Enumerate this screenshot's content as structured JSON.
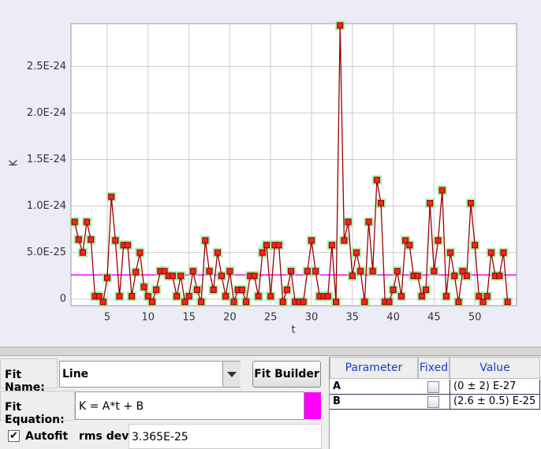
{
  "chart_data": {
    "type": "line",
    "x_label": "t",
    "y_label": "K",
    "xlim": [
      0.56,
      55.1
    ],
    "ylim": [
      -7e-26,
      2.96e-24
    ],
    "xticks": [
      5,
      10,
      15,
      20,
      25,
      30,
      35,
      40,
      45,
      50
    ],
    "yticks": [
      0,
      {
        "value": 5e-25,
        "label": "5.0E-25"
      },
      {
        "value": 1e-24,
        "label": "1.0E-24"
      },
      {
        "value": 1.5e-24,
        "label": "1.5E-24"
      },
      {
        "value": 2e-24,
        "label": "2.0E-24"
      },
      {
        "value": 2.5e-24,
        "label": "2.5E-24"
      }
    ],
    "grid": true,
    "series": [
      {
        "color": "#990000",
        "marker_color": "#ff2020",
        "halo_color": "#90ee90",
        "x": [
          1,
          1.5,
          2,
          2.5,
          3,
          3.5,
          4,
          4.5,
          5,
          5.5,
          6,
          6.5,
          7,
          7.5,
          8,
          8.5,
          9,
          9.5,
          10,
          10.5,
          11,
          11.5,
          12,
          12.5,
          13,
          13.5,
          14,
          14.5,
          15,
          15.5,
          16,
          16.5,
          17,
          17.5,
          18,
          18.5,
          19,
          19.5,
          20,
          20.5,
          21,
          21.5,
          22,
          22.5,
          23,
          23.5,
          24,
          24.5,
          25,
          25.5,
          26,
          26.5,
          27,
          27.5,
          28,
          28.5,
          29,
          29.5,
          30,
          30.5,
          31,
          31.5,
          32,
          32.5,
          33,
          33.5,
          34,
          34.5,
          35,
          35.5,
          36,
          36.5,
          37,
          37.5,
          38,
          38.5,
          39,
          39.5,
          40,
          40.5,
          41,
          41.5,
          42,
          42.5,
          43,
          43.5,
          44,
          44.5,
          45,
          45.5,
          46,
          46.5,
          47,
          47.5,
          48,
          48.5,
          49,
          49.5,
          50,
          50.5,
          51,
          51.5,
          52,
          52.5,
          53,
          53.5,
          54
        ],
        "values": [
          8.3e-25,
          6.4e-25,
          5e-25,
          8.3e-25,
          6.4e-25,
          3e-26,
          3e-26,
          -3e-26,
          2.3e-25,
          1.1e-24,
          6.3e-25,
          3e-26,
          5.8e-25,
          5.8e-25,
          3e-26,
          2.9e-25,
          5e-25,
          1.3e-25,
          3e-26,
          -3e-26,
          1e-25,
          3e-25,
          3e-25,
          2.5e-25,
          2.5e-25,
          3e-26,
          2.5e-25,
          -3e-26,
          3e-26,
          3e-25,
          1e-25,
          -3e-26,
          6.3e-25,
          3e-25,
          1e-25,
          5e-25,
          2.5e-25,
          3e-26,
          3e-25,
          -3e-26,
          1e-25,
          1e-25,
          -3e-26,
          2.5e-25,
          2.5e-25,
          3e-26,
          5e-25,
          5.8e-25,
          3e-26,
          5.8e-25,
          5.8e-25,
          -3e-26,
          1e-25,
          3e-25,
          -3e-26,
          -3e-26,
          -3e-26,
          3e-25,
          6.3e-25,
          3e-25,
          3e-26,
          3e-26,
          3e-26,
          5.8e-25,
          -3e-26,
          2.94e-24,
          6.3e-25,
          8.3e-25,
          2.5e-25,
          5e-25,
          3e-25,
          -3e-26,
          8.3e-25,
          3e-25,
          1.28e-24,
          1.03e-24,
          -3e-26,
          -3e-26,
          1e-25,
          3e-25,
          3e-26,
          6.3e-25,
          5.8e-25,
          2.5e-25,
          2.5e-25,
          3e-26,
          1e-25,
          1.03e-24,
          3e-25,
          6.3e-25,
          1.17e-24,
          3e-26,
          5e-25,
          2.5e-25,
          -3e-26,
          3e-25,
          2.5e-25,
          1.03e-24,
          5.8e-25,
          3e-26,
          -3e-26,
          3e-26,
          5e-25,
          2.5e-25,
          2.5e-25,
          5e-25,
          -3e-26
        ]
      }
    ],
    "fit": {
      "value": 2.6e-25,
      "color": "#ff00ff"
    }
  },
  "fit_panel": {
    "fit_name_label": "Fit Name:",
    "fit_name": "Line",
    "fit_builder": "Fit Builder",
    "fit_equation_label": "Fit Equation:",
    "fit_equation": "K = A*t + B",
    "autofit_label": "Autofit",
    "autofit": true,
    "rms_label": "rms dev:",
    "rms_value": "3.365E-25"
  },
  "parameter_table": {
    "headers": [
      "Parameter",
      "Fixed",
      "Value"
    ],
    "rows": [
      [
        "A",
        "(0 ± 2) E-27"
      ],
      [
        "B",
        "(2.6 ± 0.5) E-25"
      ]
    ],
    "fixed": [
      false,
      false
    ]
  }
}
